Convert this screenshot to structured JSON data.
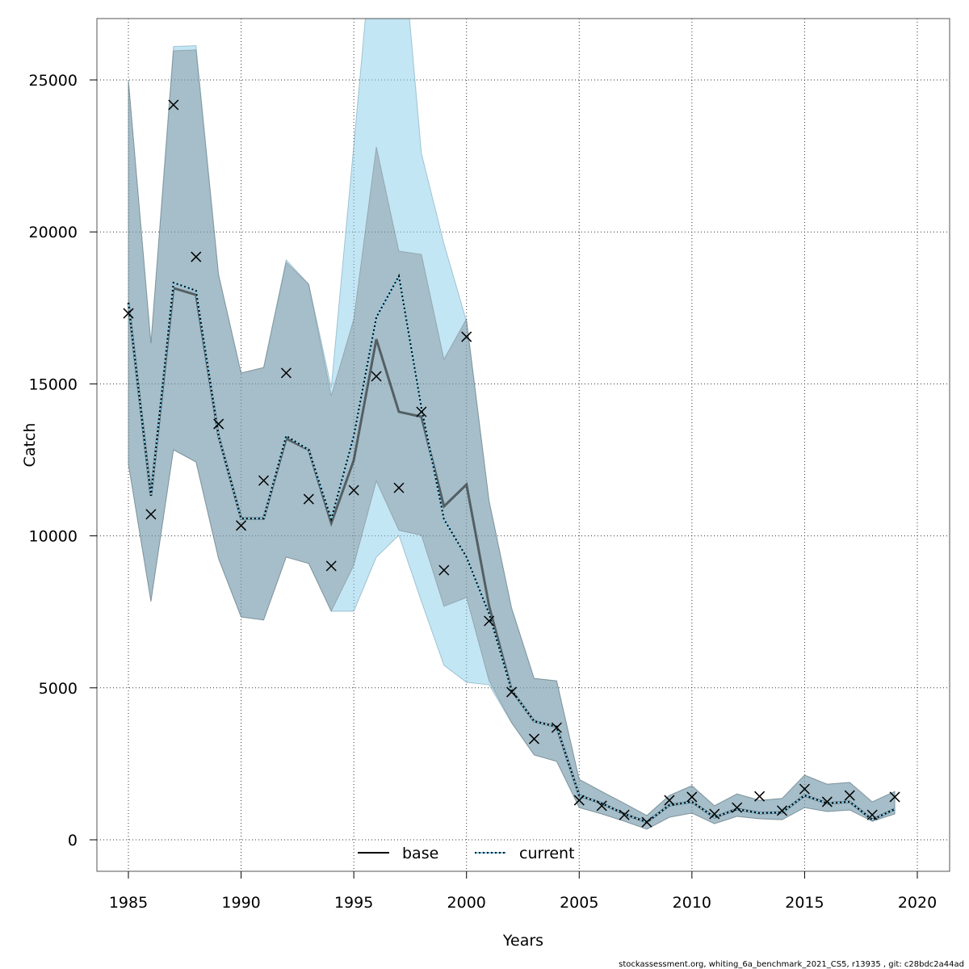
{
  "chart_data": {
    "type": "line",
    "xlabel": "Years",
    "ylabel": "Catch",
    "xlim": [
      1983.6,
      2021.4
    ],
    "ylim": [
      -1000,
      27000
    ],
    "xticks": [
      1985,
      1990,
      1995,
      2000,
      2005,
      2010,
      2015,
      2020
    ],
    "yticks": [
      0,
      5000,
      10000,
      15000,
      20000,
      25000
    ],
    "grid": true,
    "legend_position": "bottom-center",
    "footer": "stockassessment.org, whiting_6a_benchmark_2021_CS5, r13935 , git: c28bdc2a44ad",
    "colors": {
      "base_line": "#000000",
      "current_line": "#87CEEB",
      "current_band": "#87CEEB",
      "base_band": "#646464"
    },
    "x": [
      1985,
      1986,
      1987,
      1988,
      1989,
      1990,
      1991,
      1992,
      1993,
      1994,
      1995,
      1996,
      1997,
      1998,
      1999,
      2000,
      2001,
      2002,
      2003,
      2004,
      2005,
      2006,
      2007,
      2008,
      2009,
      2010,
      2011,
      2012,
      2013,
      2014,
      2015,
      2016,
      2017,
      2018,
      2019
    ],
    "observed": [
      17320,
      10710,
      24180,
      19180,
      13680,
      10340,
      11820,
      15360,
      11210,
      9010,
      11500,
      15250,
      11580,
      14080,
      8870,
      16550,
      7200,
      4860,
      3320,
      3690,
      1300,
      1120,
      820,
      580,
      1300,
      1410,
      850,
      1060,
      1430,
      960,
      1670,
      1250,
      1460,
      820,
      1410
    ],
    "series": [
      {
        "name": "base",
        "values": [
          17670,
          11320,
          18150,
          17930,
          13290,
          10570,
          10570,
          13200,
          12830,
          10420,
          12490,
          16470,
          14080,
          13920,
          10970,
          11690,
          7700,
          4920,
          3900,
          3720,
          1460,
          1200,
          850,
          580,
          1140,
          1250,
          740,
          1010,
          880,
          900,
          1460,
          1200,
          1250,
          660,
          1010
        ],
        "upper": [
          25000,
          16340,
          25960,
          25990,
          18600,
          15360,
          15540,
          19000,
          18280,
          14610,
          17140,
          22800,
          19370,
          19260,
          15810,
          17140,
          11160,
          7630,
          5310,
          5230,
          1990,
          1590,
          1200,
          800,
          1460,
          1780,
          1120,
          1510,
          1300,
          1360,
          2130,
          1830,
          1890,
          1250,
          1590
        ],
        "lower": [
          12360,
          7840,
          12830,
          12430,
          9250,
          7330,
          7230,
          9300,
          9090,
          7520,
          9030,
          11800,
          10180,
          10020,
          7680,
          7970,
          5230,
          3850,
          2790,
          2580,
          1060,
          850,
          610,
          350,
          740,
          880,
          530,
          770,
          690,
          660,
          1060,
          930,
          980,
          610,
          850
        ]
      },
      {
        "name": "current",
        "values": [
          17670,
          11320,
          18330,
          18070,
          13290,
          10570,
          10570,
          13290,
          12830,
          10550,
          13290,
          17190,
          18550,
          14210,
          10550,
          9300,
          7440,
          4920,
          3900,
          3720,
          1460,
          1200,
          850,
          580,
          1140,
          1250,
          740,
          1010,
          880,
          900,
          1460,
          1200,
          1250,
          660,
          1010
        ],
        "upper": [
          25000,
          16340,
          26100,
          26130,
          18600,
          15360,
          15540,
          19080,
          18280,
          14880,
          22850,
          31000,
          31000,
          22580,
          19610,
          17060,
          11160,
          7630,
          5310,
          5230,
          1990,
          1590,
          1200,
          800,
          1460,
          1780,
          1120,
          1510,
          1300,
          1360,
          2130,
          1830,
          1890,
          1250,
          1590
        ],
        "lower": [
          12360,
          7840,
          12830,
          12430,
          9250,
          7330,
          7230,
          9300,
          9090,
          7520,
          7520,
          9300,
          10020,
          7840,
          5740,
          5180,
          5100,
          3850,
          2790,
          2580,
          1060,
          850,
          610,
          350,
          740,
          880,
          530,
          770,
          690,
          660,
          1060,
          930,
          980,
          610,
          850
        ]
      }
    ]
  }
}
